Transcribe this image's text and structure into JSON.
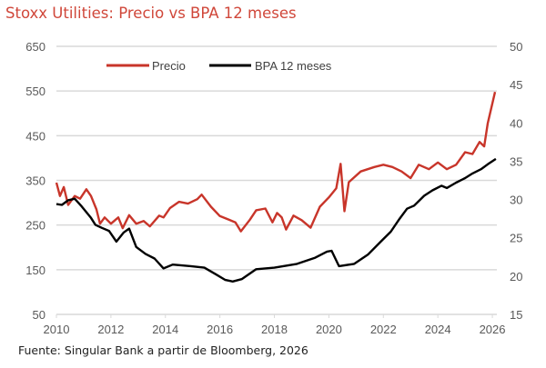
{
  "chart_data": {
    "type": "line",
    "title": "Stoxx Utilities: Precio vs BPA 12 meses",
    "source": "Fuente: Singular Bank a partir de Bloomberg, 2026",
    "xlabel": "",
    "ylabel_left": "",
    "ylabel_right": "",
    "x_range": [
      2010,
      2026
    ],
    "x_ticks": [
      "2010",
      "2012",
      "2014",
      "2016",
      "2018",
      "2020",
      "2022",
      "2024",
      "2026"
    ],
    "y_left_range": [
      50,
      650
    ],
    "y_left_ticks": [
      "50",
      "150",
      "250",
      "350",
      "450",
      "550",
      "650"
    ],
    "y_right_range": [
      15,
      50
    ],
    "y_right_ticks": [
      "15",
      "20",
      "25",
      "30",
      "35",
      "40",
      "45",
      "50"
    ],
    "grid": true,
    "legend_position": "top",
    "series": [
      {
        "name": "Precio",
        "axis": "left",
        "color": "#c8352a",
        "points": [
          [
            2010.0,
            345
          ],
          [
            2010.13,
            315
          ],
          [
            2010.27,
            335
          ],
          [
            2010.43,
            295
          ],
          [
            2010.67,
            315
          ],
          [
            2010.87,
            309
          ],
          [
            2011.1,
            330
          ],
          [
            2011.27,
            315
          ],
          [
            2011.47,
            285
          ],
          [
            2011.6,
            253
          ],
          [
            2011.77,
            267
          ],
          [
            2012.0,
            253
          ],
          [
            2012.27,
            267
          ],
          [
            2012.43,
            243
          ],
          [
            2012.67,
            272
          ],
          [
            2012.93,
            253
          ],
          [
            2013.2,
            259
          ],
          [
            2013.43,
            247
          ],
          [
            2013.77,
            271
          ],
          [
            2013.93,
            267
          ],
          [
            2014.17,
            288
          ],
          [
            2014.5,
            302
          ],
          [
            2014.83,
            298
          ],
          [
            2015.17,
            308
          ],
          [
            2015.33,
            318
          ],
          [
            2015.67,
            291
          ],
          [
            2016.0,
            270
          ],
          [
            2016.33,
            262
          ],
          [
            2016.57,
            256
          ],
          [
            2016.77,
            236
          ],
          [
            2017.1,
            262
          ],
          [
            2017.33,
            283
          ],
          [
            2017.67,
            287
          ],
          [
            2017.93,
            256
          ],
          [
            2018.1,
            277
          ],
          [
            2018.27,
            267
          ],
          [
            2018.43,
            240
          ],
          [
            2018.7,
            271
          ],
          [
            2019.0,
            261
          ],
          [
            2019.33,
            244
          ],
          [
            2019.67,
            291
          ],
          [
            2020.0,
            312
          ],
          [
            2020.27,
            332
          ],
          [
            2020.43,
            387
          ],
          [
            2020.57,
            281
          ],
          [
            2020.73,
            346
          ],
          [
            2021.17,
            370
          ],
          [
            2021.67,
            380
          ],
          [
            2022.0,
            385
          ],
          [
            2022.33,
            380
          ],
          [
            2022.67,
            370
          ],
          [
            2023.0,
            355
          ],
          [
            2023.3,
            385
          ],
          [
            2023.67,
            375
          ],
          [
            2024.0,
            390
          ],
          [
            2024.33,
            375
          ],
          [
            2024.67,
            385
          ],
          [
            2025.0,
            413
          ],
          [
            2025.27,
            409
          ],
          [
            2025.53,
            436
          ],
          [
            2025.7,
            426
          ],
          [
            2025.83,
            478
          ],
          [
            2026.1,
            548
          ]
        ]
      },
      {
        "name": "BPA 12 meses",
        "axis": "right",
        "color": "#000000",
        "points": [
          [
            2010.0,
            29.4
          ],
          [
            2010.2,
            29.3
          ],
          [
            2010.43,
            29.9
          ],
          [
            2010.67,
            30.1
          ],
          [
            2010.93,
            29.1
          ],
          [
            2011.27,
            27.6
          ],
          [
            2011.43,
            26.7
          ],
          [
            2011.67,
            26.3
          ],
          [
            2011.93,
            25.9
          ],
          [
            2012.2,
            24.5
          ],
          [
            2012.47,
            25.7
          ],
          [
            2012.67,
            26.2
          ],
          [
            2012.93,
            23.8
          ],
          [
            2013.27,
            22.9
          ],
          [
            2013.6,
            22.3
          ],
          [
            2013.93,
            21.0
          ],
          [
            2014.27,
            21.5
          ],
          [
            2014.93,
            21.3
          ],
          [
            2015.43,
            21.1
          ],
          [
            2015.87,
            20.2
          ],
          [
            2016.2,
            19.5
          ],
          [
            2016.47,
            19.3
          ],
          [
            2016.8,
            19.6
          ],
          [
            2017.33,
            20.9
          ],
          [
            2018.0,
            21.1
          ],
          [
            2018.83,
            21.6
          ],
          [
            2019.5,
            22.4
          ],
          [
            2019.93,
            23.2
          ],
          [
            2020.1,
            23.3
          ],
          [
            2020.37,
            21.3
          ],
          [
            2020.93,
            21.6
          ],
          [
            2021.43,
            22.8
          ],
          [
            2021.93,
            24.6
          ],
          [
            2022.27,
            25.8
          ],
          [
            2022.6,
            27.5
          ],
          [
            2022.87,
            28.8
          ],
          [
            2023.13,
            29.2
          ],
          [
            2023.5,
            30.5
          ],
          [
            2023.8,
            31.2
          ],
          [
            2024.13,
            31.8
          ],
          [
            2024.33,
            31.5
          ],
          [
            2024.67,
            32.2
          ],
          [
            2025.0,
            32.8
          ],
          [
            2025.27,
            33.4
          ],
          [
            2025.6,
            34.0
          ],
          [
            2025.83,
            34.6
          ],
          [
            2026.13,
            35.3
          ]
        ]
      }
    ]
  }
}
